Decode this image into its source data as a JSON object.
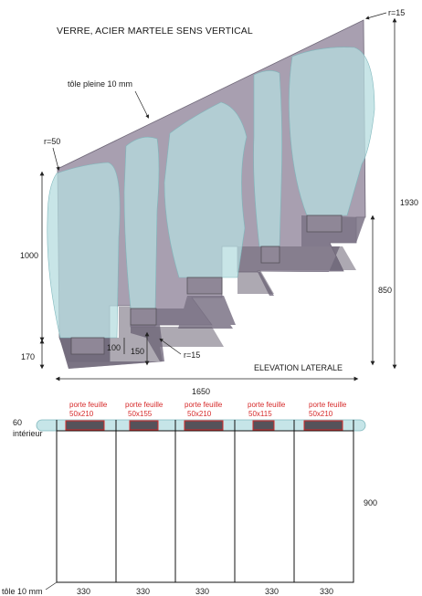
{
  "title": "VERRE, ACIER MARTELE SENS VERTICAL",
  "labels": {
    "tole_pleine": "tôle pleine 10 mm",
    "r15_top": "r=15",
    "r50": "r=50",
    "r15_bottom": "r=15",
    "elevation": "ELEVATION LATERALE",
    "interieur_60": "60",
    "interieur": "intérieur",
    "tole_bottom": "tôle 10 mm"
  },
  "dimensions": {
    "height_total": "1930",
    "h_1000": "1000",
    "h_170": "170",
    "h_100": "100",
    "h_150": "150",
    "h_850": "850",
    "width_total": "1650",
    "h_900": "900"
  },
  "porte_feuilles": [
    {
      "label": "porte feuille",
      "size": "50x210"
    },
    {
      "label": "porte feuille",
      "size": "50x155"
    },
    {
      "label": "porte feuille",
      "size": "50x210"
    },
    {
      "label": "porte feuille",
      "size": "50x115"
    },
    {
      "label": "porte feuille",
      "size": "50x210"
    }
  ],
  "bottom_widths": [
    "330",
    "330",
    "330",
    "330",
    "330"
  ],
  "colors": {
    "steel": "#9a8f9f",
    "steel_dark": "#6f6878",
    "glass": "#b6dcdf",
    "glass_stroke": "#7fb7bc",
    "red": "#d62a2a",
    "holder": "#55525a"
  }
}
